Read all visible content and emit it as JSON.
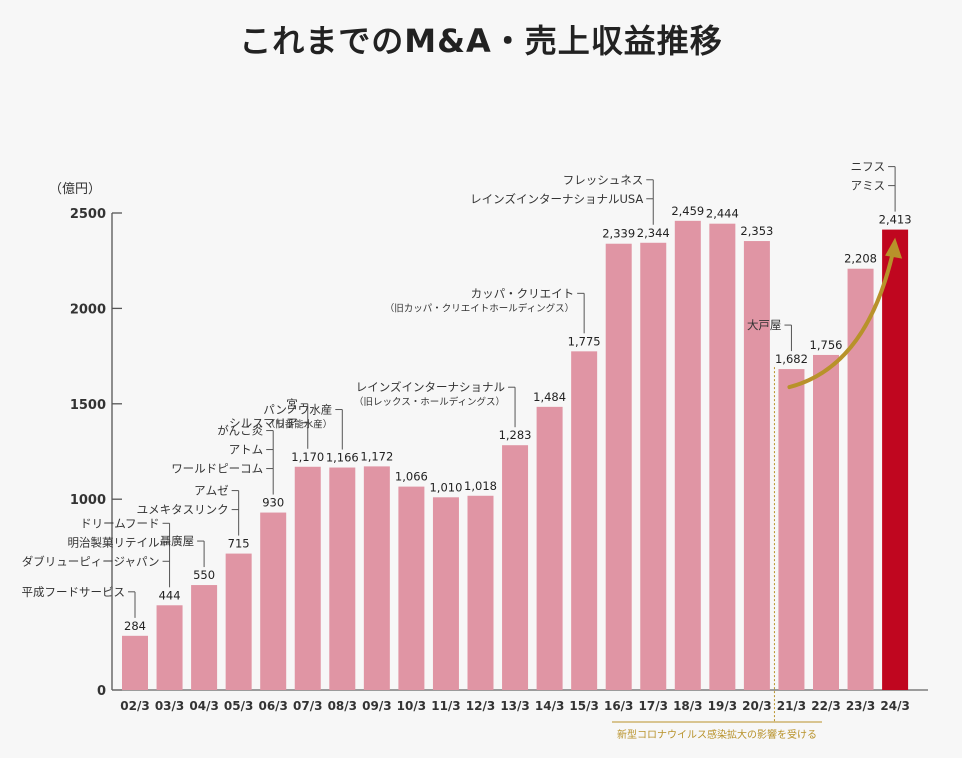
{
  "title": "これまでのM&A・売上収益推移",
  "chart_data": {
    "type": "bar",
    "unit_label": "（億円）",
    "ylim": [
      0,
      2500
    ],
    "yticks": [
      "0",
      "1000",
      "1500",
      "2000",
      "2500"
    ],
    "categories": [
      "02/3",
      "03/3",
      "04/3",
      "05/3",
      "06/3",
      "07/3",
      "08/3",
      "09/3",
      "10/3",
      "11/3",
      "12/3",
      "13/3",
      "14/3",
      "15/3",
      "16/3",
      "17/3",
      "18/3",
      "19/3",
      "20/3",
      "21/3",
      "22/3",
      "23/3",
      "24/3"
    ],
    "values": [
      284,
      444,
      550,
      715,
      930,
      1170,
      1166,
      1172,
      1066,
      1010,
      1018,
      1283,
      1484,
      1775,
      2339,
      2344,
      2459,
      2444,
      2353,
      1682,
      1756,
      2208,
      2413
    ],
    "value_labels": [
      "284",
      "444",
      "550",
      "715",
      "930",
      "1,170",
      "1,166",
      "1,172",
      "1,066",
      "1,010",
      "1,018",
      "1,283",
      "1,484",
      "1,775",
      "2,339",
      "2,344",
      "2,459",
      "2,444",
      "2,353",
      "1,682",
      "1,756",
      "2,208",
      "2,413"
    ],
    "bar_color": "#e095a4",
    "highlight_color": "#c0061f",
    "highlight_index": 22,
    "annotations": [
      {
        "bar": 0,
        "lines": [
          "平成フードサービス"
        ]
      },
      {
        "bar": 1,
        "lines": [
          "ドリームフード",
          "明治製菓リテイル",
          "ダブリューピィージャパン"
        ]
      },
      {
        "bar": 2,
        "lines": [
          "聶廣屋"
        ]
      },
      {
        "bar": 3,
        "lines": [
          "アムゼ",
          "ユメキタスリンク"
        ]
      },
      {
        "bar": 4,
        "lines": [
          "がんこ炎",
          "アトム",
          "ワールドピーコム"
        ]
      },
      {
        "bar": 5,
        "lines": [
          "宮",
          "シルスマリア"
        ]
      },
      {
        "bar": 6,
        "lines": [
          "パンノウ水産"
        ],
        "sub": "（旧番能水産）"
      },
      {
        "bar": 11,
        "lines": [
          "レインズインターナショナル"
        ],
        "sub": "（旧レックス・ホールディングス）"
      },
      {
        "bar": 13,
        "lines": [
          "カッパ・クリエイト"
        ],
        "sub": "（旧カッパ・クリエイトホールディングス）"
      },
      {
        "bar": 15,
        "lines": [
          "フレッシュネス",
          "レインズインターナショナルUSA"
        ]
      },
      {
        "bar": 19,
        "lines": [
          "大戸屋"
        ]
      },
      {
        "bar": 22,
        "lines": [
          "ニフス",
          "アミス"
        ]
      }
    ],
    "covid_note": "新型コロナウイルス感染拡大の影響を受ける",
    "covid_color": "#b8922a"
  }
}
